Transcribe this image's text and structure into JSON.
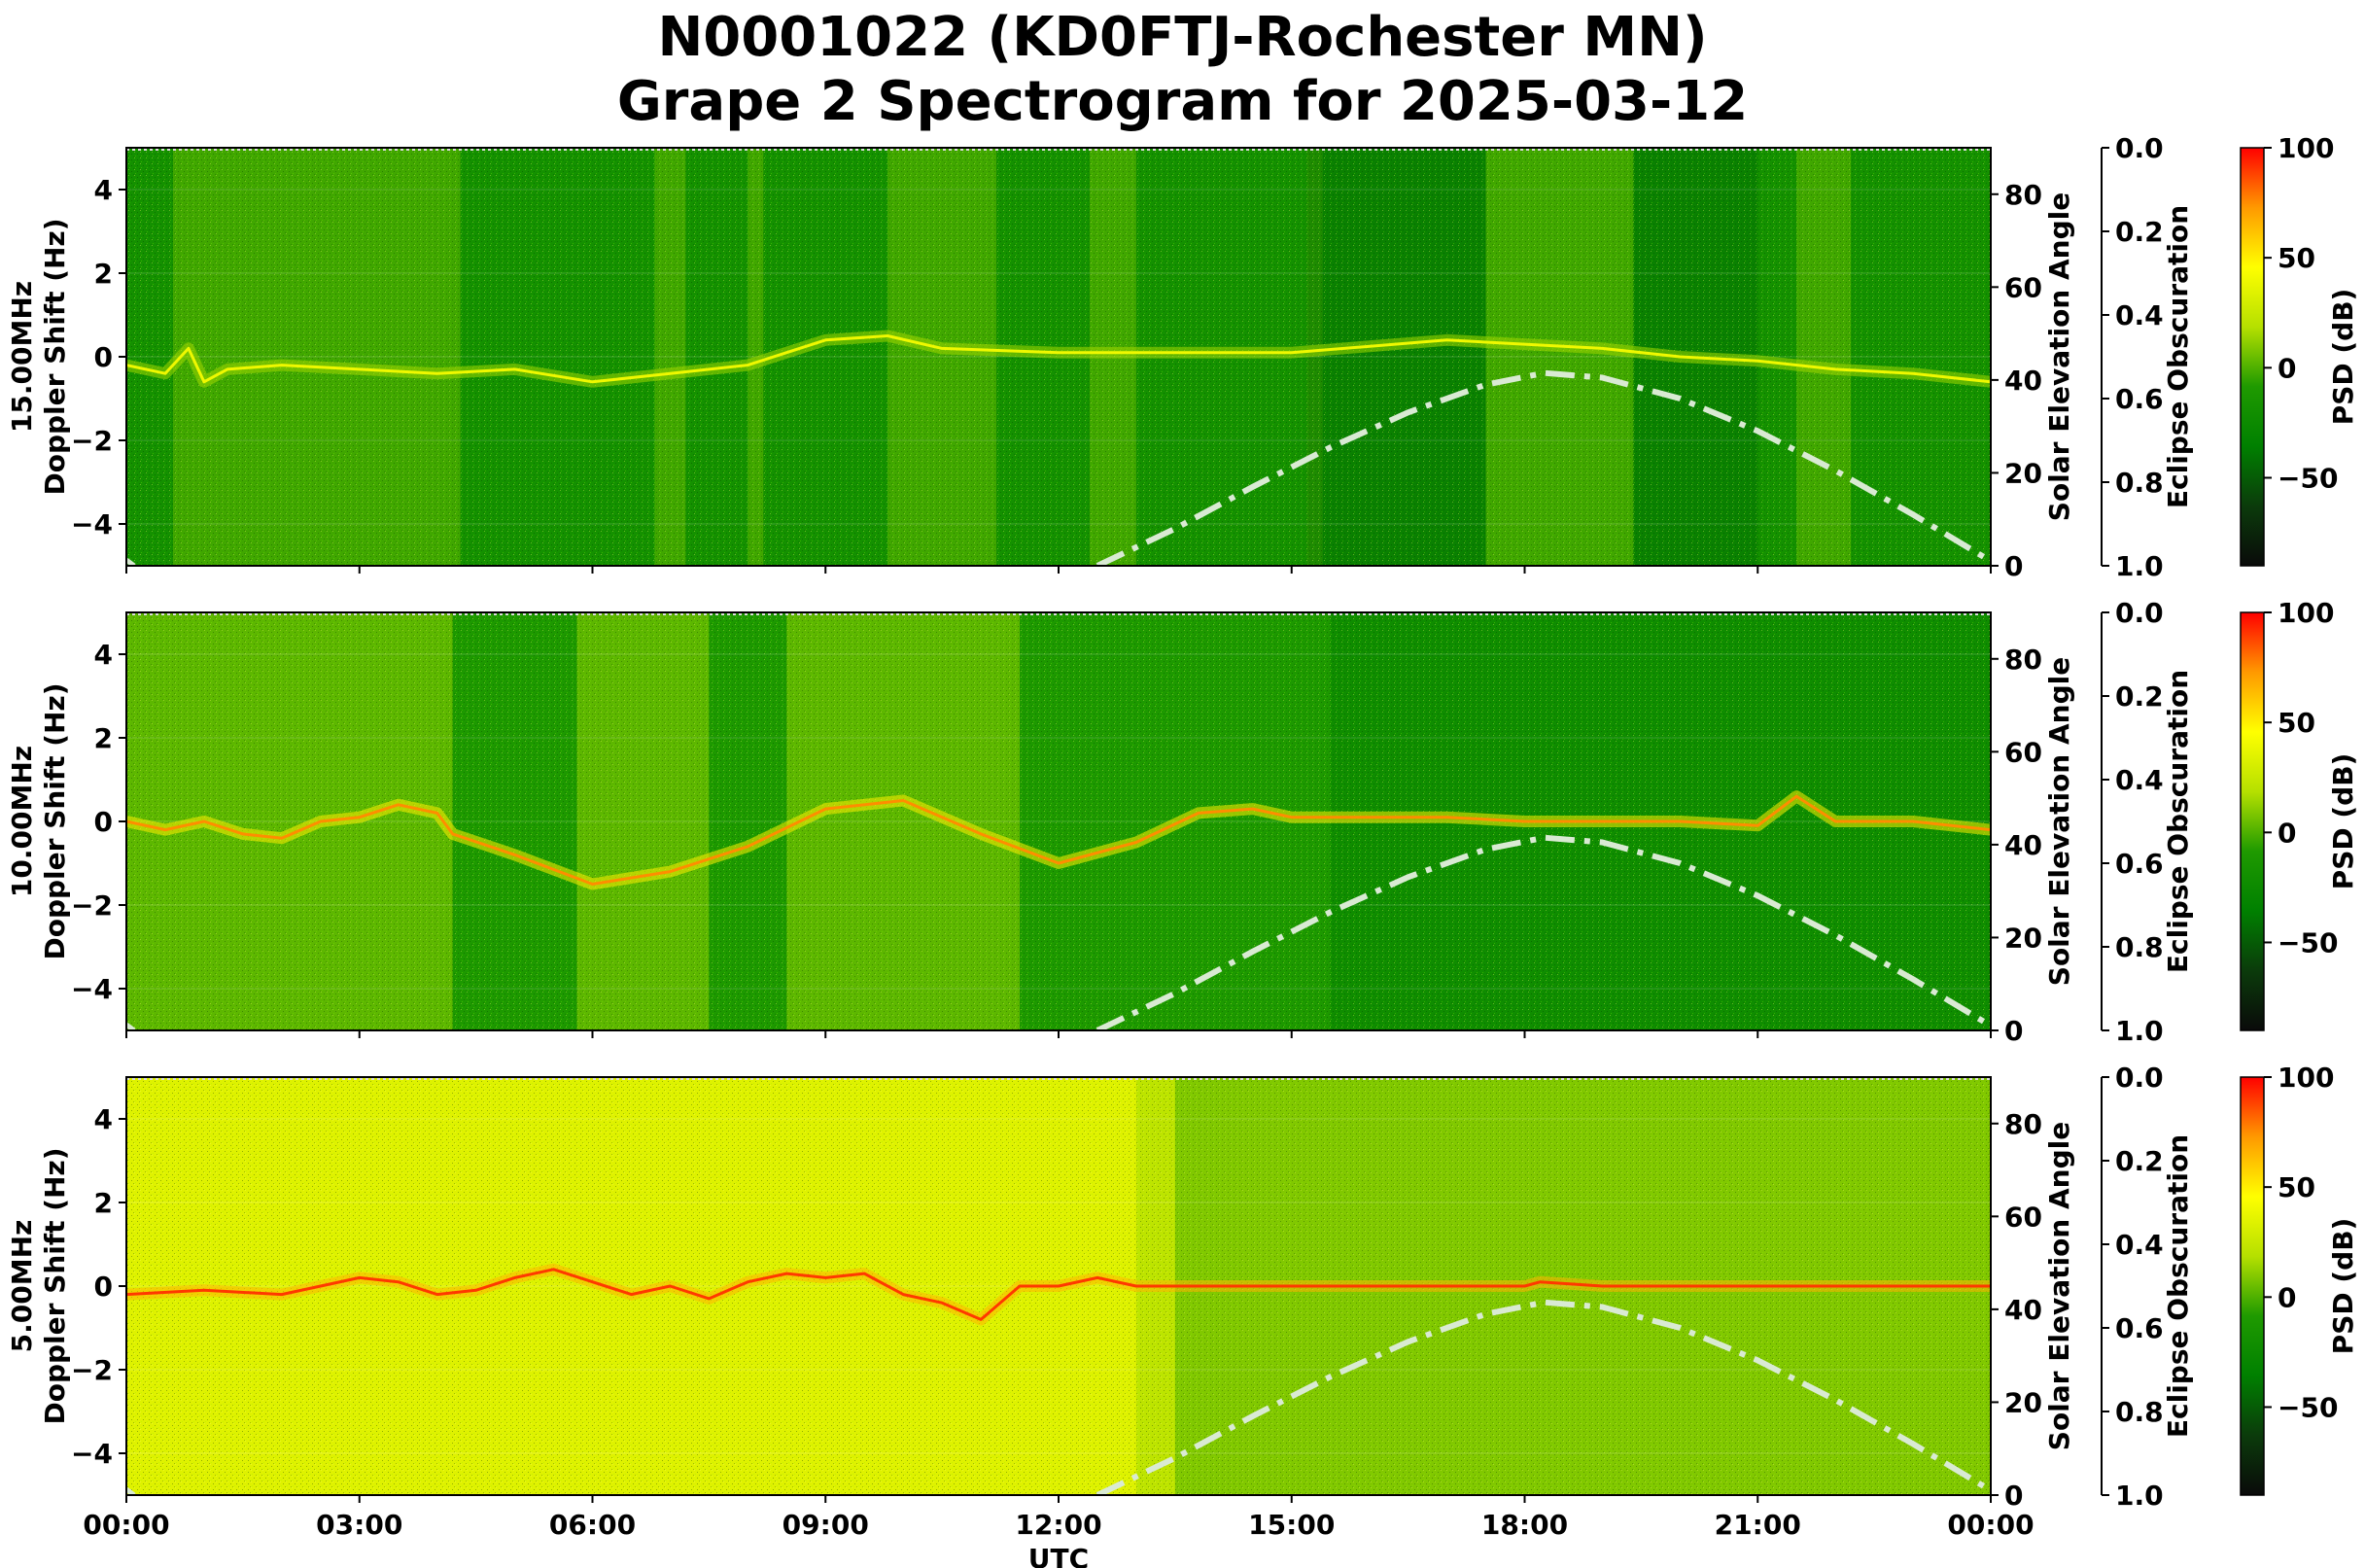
{
  "title_line1": "N0001022 (KD0FTJ-Rochester MN)",
  "title_line2": "Grape 2 Spectrogram for 2025-03-12",
  "colors": {
    "cmap": [
      "#0a0a0a",
      "#0b3b0b",
      "#008000",
      "#1f9a00",
      "#b5e000",
      "#ffff00",
      "#ff9900",
      "#ff0000"
    ],
    "solar_line": "#d9ead3"
  },
  "chart_data": {
    "type": "heatmap",
    "xlabel": "UTC",
    "x_ticks": [
      "00:00",
      "03:00",
      "06:00",
      "09:00",
      "12:00",
      "15:00",
      "18:00",
      "21:00",
      "00:00"
    ],
    "xlim_hours": [
      0,
      24
    ],
    "y_ticks": [
      -4,
      -2,
      0,
      2,
      4
    ],
    "ylim": [
      -5,
      5
    ],
    "elevation_label": "Solar Elevation Angle",
    "elevation_ticks": [
      0,
      20,
      40,
      60,
      80
    ],
    "elevation_lim": [
      0,
      90
    ],
    "obscuration_label": "Eclipse Obscuration",
    "obscuration_ticks": [
      "0.0",
      "0.2",
      "0.4",
      "0.6",
      "0.8",
      "1.0"
    ],
    "psd_label": "PSD (dB)",
    "psd_ticks": [
      100,
      50,
      0,
      -50
    ],
    "psd_lim": [
      -90,
      100
    ],
    "solar_elevation": {
      "x_hours": [
        12.5,
        13.5,
        14.5,
        15.5,
        16.5,
        17.5,
        18.25,
        19.0,
        20.0,
        21.0,
        22.0,
        23.0,
        24.0
      ],
      "values": [
        0,
        8,
        17,
        25.5,
        33,
        39,
        41.5,
        40.5,
        36,
        29,
        20.5,
        11,
        1
      ]
    },
    "panels": [
      {
        "label": "15.00MHz\nDoppler Shift (Hz)",
        "background_db": -18,
        "trace": {
          "x_hours": [
            0,
            0.5,
            0.8,
            1.0,
            1.3,
            2,
            3,
            4,
            5,
            6,
            7,
            8,
            9,
            9.8,
            10.5,
            12,
            15,
            17,
            18,
            19,
            20,
            21,
            22,
            23,
            24
          ],
          "doppler": [
            -0.2,
            -0.4,
            0.2,
            -0.6,
            -0.3,
            -0.2,
            -0.3,
            -0.4,
            -0.3,
            -0.6,
            -0.4,
            -0.2,
            0.4,
            0.5,
            0.2,
            0.1,
            0.1,
            0.4,
            0.3,
            0.2,
            0.0,
            -0.1,
            -0.3,
            -0.4,
            -0.6
          ]
        },
        "trace_db": 40,
        "bright_spans_hours": [
          [
            0.6,
            4.3
          ],
          [
            6.8,
            7.2
          ],
          [
            8.0,
            8.2
          ],
          [
            9.8,
            11.2
          ],
          [
            12.4,
            13.0
          ],
          [
            15.2,
            15.4
          ],
          [
            17.5,
            19.4
          ],
          [
            21.5,
            22.2
          ]
        ],
        "dark_spans_hours": [
          [
            15.2,
            17.5
          ],
          [
            19.4,
            21.0
          ]
        ]
      },
      {
        "label": "10.00MHz\nDoppler Shift (Hz)",
        "background_db": -10,
        "trace": {
          "x_hours": [
            0,
            0.5,
            1,
            1.5,
            2,
            2.5,
            3,
            3.5,
            4,
            4.2,
            5,
            6,
            7,
            8,
            9,
            10,
            11,
            12,
            13,
            13.8,
            14.5,
            15,
            16,
            17,
            18,
            19,
            20,
            21,
            21.5,
            22,
            23,
            24
          ],
          "doppler": [
            0.0,
            -0.2,
            0.0,
            -0.3,
            -0.4,
            0.0,
            0.1,
            0.4,
            0.2,
            -0.3,
            -0.8,
            -1.5,
            -1.2,
            -0.6,
            0.3,
            0.5,
            -0.3,
            -1.0,
            -0.5,
            0.2,
            0.3,
            0.1,
            0.1,
            0.1,
            0.0,
            0.0,
            0.0,
            -0.1,
            0.6,
            0.0,
            0.0,
            -0.2
          ]
        },
        "trace_db": 75,
        "bright_spans_hours": [
          [
            0,
            4.2
          ],
          [
            5.8,
            7.5
          ],
          [
            8.5,
            11.5
          ]
        ],
        "dark_spans_hours": [
          [
            15.5,
            24
          ]
        ]
      },
      {
        "label": "5.00MHz\nDoppler Shift (Hz)",
        "background_db": 22,
        "trace": {
          "x_hours": [
            0,
            1,
            2,
            3,
            3.5,
            4,
            4.5,
            5,
            5.5,
            6,
            6.5,
            7,
            7.5,
            8,
            8.5,
            9,
            9.5,
            10,
            10.5,
            11,
            11.5,
            12,
            12.5,
            13,
            14,
            15,
            16,
            17,
            18,
            18.2,
            19,
            20,
            21,
            22,
            23,
            24
          ],
          "doppler": [
            -0.2,
            -0.1,
            -0.2,
            0.2,
            0.1,
            -0.2,
            -0.1,
            0.2,
            0.4,
            0.1,
            -0.2,
            0.0,
            -0.3,
            0.1,
            0.3,
            0.2,
            0.3,
            -0.2,
            -0.4,
            -0.8,
            0.0,
            0.0,
            0.2,
            0.0,
            0.0,
            0.0,
            0.0,
            0.0,
            0.0,
            0.1,
            0.0,
            0.0,
            0.0,
            0.0,
            0.0,
            0.0
          ]
        },
        "trace_db": 90,
        "bright_spans_hours": [
          [
            0,
            13.0
          ]
        ],
        "dark_spans_hours": [
          [
            13.5,
            24
          ]
        ]
      }
    ]
  }
}
